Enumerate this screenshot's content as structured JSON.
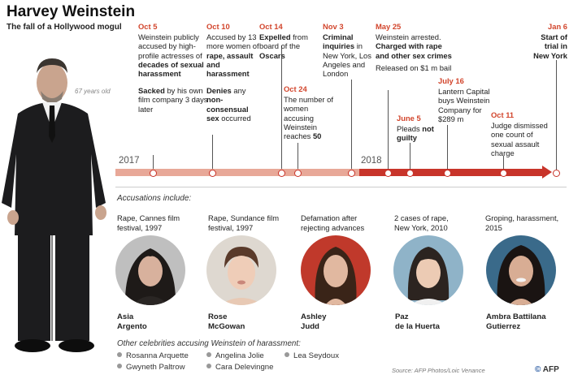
{
  "header": {
    "title": "Harvey Weinstein",
    "subtitle": "The fall of a Hollywood mogul",
    "age": "67 years old"
  },
  "timeline": {
    "year_start": "2017",
    "year_mid": "2018",
    "events": [
      {
        "date": "Oct 5",
        "line1": "Weinstein publicly accused by high-profile actresses of",
        "line1_bold": "decades of sexual harassment",
        "line2_bold": "Sacked",
        "line2": "by his own film company 3 days later"
      },
      {
        "date": "Oct 10",
        "line1": "Accused by 13 more women of",
        "line1_bold": "rape, assault and harassment",
        "line2_bold": "Denies",
        "line2": "any",
        "line2_bold_b": "non-consensual sex",
        "line2_b": "occurred"
      },
      {
        "date": "Oct 14",
        "line1_bold": "Expelled",
        "line1": "from board of the",
        "line1_bold_b": "Oscars"
      },
      {
        "date": "Oct 24",
        "line1": "The number of women accusing Weinstein reaches",
        "line1_bold": "50"
      },
      {
        "date": "Nov 3",
        "line1_bold": "Criminal inquiries",
        "line1": "in New York, Los Angeles and London"
      },
      {
        "date": "May 25",
        "line1": "Weinstein arrested.",
        "line1_bold": "Charged with rape and other sex crimes",
        "line2": "Released on $1 m bail"
      },
      {
        "date": "June 5",
        "line1": "Pleads",
        "line1_bold": "not guilty"
      },
      {
        "date": "July 16",
        "line1": "Lantern Capital buys Weinstein Company for $289 m"
      },
      {
        "date": "Oct 11",
        "line1": "Judge dismissed one count of sexual assault charge"
      },
      {
        "date": "Jan 6",
        "line1_bold": "Start of trial in New York"
      }
    ]
  },
  "accusations": {
    "title": "Accusations include:",
    "items": [
      {
        "desc": "Rape, Cannes film festival, 1997",
        "name1": "Asia",
        "name2": "Argento"
      },
      {
        "desc": "Rape, Sundance film festival, 1997",
        "name1": "Rose",
        "name2": "McGowan"
      },
      {
        "desc": "Defamation after rejecting advances",
        "name1": "Ashley",
        "name2": "Judd"
      },
      {
        "desc": "2 cases of rape, New York, 2010",
        "name1": "Paz",
        "name2": "de la Huerta"
      },
      {
        "desc": "Groping, harassment, 2015",
        "name1": "Ambra Battilana",
        "name2": "Gutierrez"
      }
    ]
  },
  "others": {
    "title": "Other celebrities accusing Weinstein of harassment:",
    "names": [
      "Rosanna Arquette",
      "Angelina Jolie",
      "Lea Seydoux",
      "Gwyneth Paltrow",
      "Cara Delevingne"
    ]
  },
  "footer": {
    "source": "Source: AFP Photos/Loic Venance",
    "logo": "AFP"
  },
  "colors": {
    "accent": "#d2452c",
    "bar_2017": "#e8a898",
    "bar_2018": "#c8342a"
  }
}
